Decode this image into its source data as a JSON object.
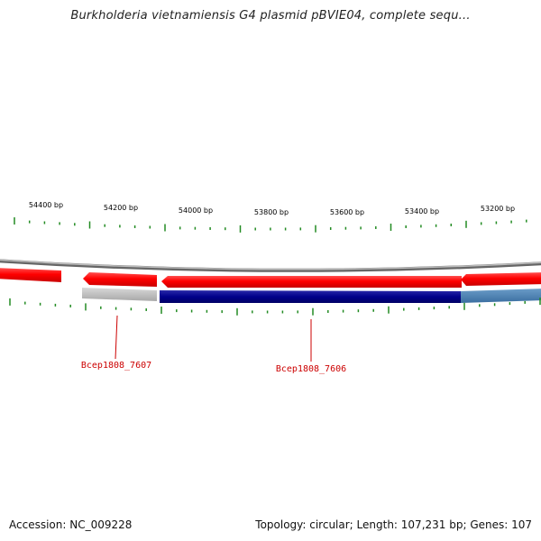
{
  "title": "Burkholderia vietnamiensis G4 plasmid pBVIE04, complete sequ...",
  "footer": {
    "accession": "Accession: NC_009228",
    "summary": "Topology: circular; Length: 107,231 bp; Genes: 107"
  },
  "scale_labels": [
    "54400 bp",
    "54200 bp",
    "54000 bp",
    "53800 bp",
    "53600 bp",
    "53400 bp",
    "53200 bp"
  ],
  "gene_labels": [
    "Bcep1808_7607",
    "Bcep1808_7606"
  ],
  "colors": {
    "forward_strand": "#ff0000",
    "reverse_strand": "#00008b",
    "reverse_light": "#4682b4",
    "grey_feature": "#c0c0c0",
    "backbone": "#808080",
    "ticks": "#228b22",
    "gene_label": "#cc0000"
  }
}
